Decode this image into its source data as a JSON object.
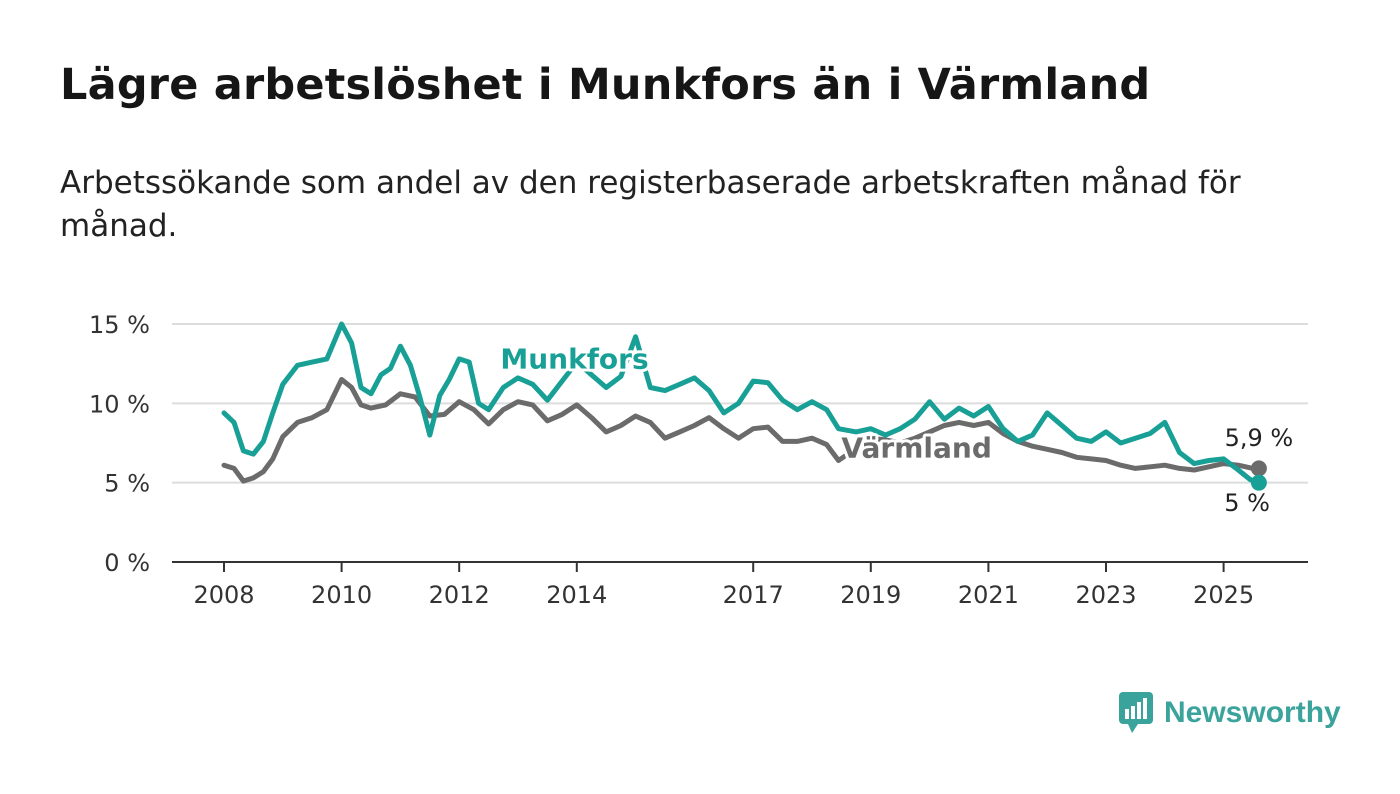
{
  "title": "Lägre arbetslöshet i Munkfors än i Värmland",
  "subtitle": "Arbetssökande som andel av den registerbaserade arbetskraften månad för månad.",
  "brand": {
    "name": "Newsworthy",
    "icon": "newsworthy-logo-icon",
    "color": "#3aa39b"
  },
  "chart_data": {
    "type": "line",
    "x_unit": "year",
    "xlim": [
      2007.7,
      2026.4
    ],
    "ylim": [
      0,
      15
    ],
    "x_ticks": [
      {
        "value": 2008,
        "label": "2008"
      },
      {
        "value": 2010,
        "label": "2010"
      },
      {
        "value": 2012,
        "label": "2012"
      },
      {
        "value": 2014,
        "label": "2014"
      },
      {
        "value": 2017,
        "label": "2017"
      },
      {
        "value": 2019,
        "label": "2019"
      },
      {
        "value": 2021,
        "label": "2021"
      },
      {
        "value": 2023,
        "label": "2023"
      },
      {
        "value": 2025,
        "label": "2025"
      }
    ],
    "y_ticks": [
      {
        "value": 0,
        "label": "0 %"
      },
      {
        "value": 5,
        "label": "5 %"
      },
      {
        "value": 10,
        "label": "10 %"
      },
      {
        "value": 15,
        "label": "15 %"
      }
    ],
    "grid": true,
    "series": [
      {
        "name": "Värmland",
        "color": "#6b6b6b",
        "end_label": "5,9 %",
        "points": [
          [
            2008.0,
            6.1
          ],
          [
            2008.17,
            5.9
          ],
          [
            2008.33,
            5.1
          ],
          [
            2008.5,
            5.3
          ],
          [
            2008.67,
            5.7
          ],
          [
            2008.83,
            6.5
          ],
          [
            2009.0,
            7.9
          ],
          [
            2009.25,
            8.8
          ],
          [
            2009.5,
            9.1
          ],
          [
            2009.75,
            9.6
          ],
          [
            2010.0,
            11.5
          ],
          [
            2010.17,
            11.0
          ],
          [
            2010.33,
            9.9
          ],
          [
            2010.5,
            9.7
          ],
          [
            2010.75,
            9.9
          ],
          [
            2011.0,
            10.6
          ],
          [
            2011.25,
            10.4
          ],
          [
            2011.5,
            9.2
          ],
          [
            2011.75,
            9.3
          ],
          [
            2012.0,
            10.1
          ],
          [
            2012.25,
            9.6
          ],
          [
            2012.5,
            8.7
          ],
          [
            2012.75,
            9.6
          ],
          [
            2013.0,
            10.1
          ],
          [
            2013.25,
            9.9
          ],
          [
            2013.5,
            8.9
          ],
          [
            2013.75,
            9.3
          ],
          [
            2014.0,
            9.9
          ],
          [
            2014.25,
            9.1
          ],
          [
            2014.5,
            8.2
          ],
          [
            2014.75,
            8.6
          ],
          [
            2015.0,
            9.2
          ],
          [
            2015.25,
            8.8
          ],
          [
            2015.5,
            7.8
          ],
          [
            2015.75,
            8.2
          ],
          [
            2016.0,
            8.6
          ],
          [
            2016.25,
            9.1
          ],
          [
            2016.5,
            8.4
          ],
          [
            2016.75,
            7.8
          ],
          [
            2017.0,
            8.4
          ],
          [
            2017.25,
            8.5
          ],
          [
            2017.5,
            7.6
          ],
          [
            2017.75,
            7.6
          ],
          [
            2018.0,
            7.8
          ],
          [
            2018.25,
            7.4
          ],
          [
            2018.45,
            6.4
          ],
          [
            2019.0,
            7.8
          ],
          [
            2019.25,
            7.7
          ],
          [
            2019.5,
            7.5
          ],
          [
            2019.75,
            7.8
          ],
          [
            2020.0,
            8.2
          ],
          [
            2020.25,
            8.6
          ],
          [
            2020.5,
            8.8
          ],
          [
            2020.75,
            8.6
          ],
          [
            2021.0,
            8.8
          ],
          [
            2021.25,
            8.1
          ],
          [
            2021.5,
            7.6
          ],
          [
            2021.75,
            7.3
          ],
          [
            2022.0,
            7.1
          ],
          [
            2022.25,
            6.9
          ],
          [
            2022.5,
            6.6
          ],
          [
            2022.75,
            6.5
          ],
          [
            2023.0,
            6.4
          ],
          [
            2023.25,
            6.1
          ],
          [
            2023.5,
            5.9
          ],
          [
            2023.75,
            6.0
          ],
          [
            2024.0,
            6.1
          ],
          [
            2024.25,
            5.9
          ],
          [
            2024.5,
            5.8
          ],
          [
            2024.75,
            6.0
          ],
          [
            2025.0,
            6.2
          ],
          [
            2025.25,
            6.1
          ],
          [
            2025.5,
            5.9
          ],
          [
            2025.6,
            5.9
          ]
        ]
      },
      {
        "name": "Munkfors",
        "color": "#18a096",
        "end_label": "5 %",
        "points": [
          [
            2008.0,
            9.4
          ],
          [
            2008.17,
            8.8
          ],
          [
            2008.33,
            7.0
          ],
          [
            2008.5,
            6.8
          ],
          [
            2008.67,
            7.6
          ],
          [
            2008.83,
            9.4
          ],
          [
            2009.0,
            11.2
          ],
          [
            2009.25,
            12.4
          ],
          [
            2009.5,
            12.6
          ],
          [
            2009.75,
            12.8
          ],
          [
            2010.0,
            15.0
          ],
          [
            2010.17,
            13.8
          ],
          [
            2010.33,
            11.0
          ],
          [
            2010.5,
            10.6
          ],
          [
            2010.67,
            11.8
          ],
          [
            2010.83,
            12.2
          ],
          [
            2011.0,
            13.6
          ],
          [
            2011.17,
            12.4
          ],
          [
            2011.33,
            10.4
          ],
          [
            2011.5,
            8.0
          ],
          [
            2011.67,
            10.5
          ],
          [
            2011.83,
            11.5
          ],
          [
            2012.0,
            12.8
          ],
          [
            2012.17,
            12.6
          ],
          [
            2012.33,
            10.0
          ],
          [
            2012.5,
            9.6
          ],
          [
            2012.75,
            11.0
          ],
          [
            2013.0,
            11.6
          ],
          [
            2013.25,
            11.2
          ],
          [
            2013.5,
            10.2
          ],
          [
            2013.75,
            11.4
          ],
          [
            2014.0,
            12.6
          ],
          [
            2014.25,
            11.8
          ],
          [
            2014.5,
            11.0
          ],
          [
            2014.75,
            11.7
          ],
          [
            2015.0,
            14.2
          ],
          [
            2015.25,
            11.0
          ],
          [
            2015.5,
            10.8
          ],
          [
            2015.75,
            11.2
          ],
          [
            2016.0,
            11.6
          ],
          [
            2016.25,
            10.8
          ],
          [
            2016.5,
            9.4
          ],
          [
            2016.75,
            10.0
          ],
          [
            2017.0,
            11.4
          ],
          [
            2017.25,
            11.3
          ],
          [
            2017.5,
            10.2
          ],
          [
            2017.75,
            9.6
          ],
          [
            2018.0,
            10.1
          ],
          [
            2018.25,
            9.6
          ],
          [
            2018.45,
            8.4
          ],
          [
            2018.75,
            8.2
          ],
          [
            2019.0,
            8.4
          ],
          [
            2019.25,
            8.0
          ],
          [
            2019.5,
            8.4
          ],
          [
            2019.75,
            9.0
          ],
          [
            2020.0,
            10.1
          ],
          [
            2020.25,
            9.0
          ],
          [
            2020.5,
            9.7
          ],
          [
            2020.75,
            9.2
          ],
          [
            2021.0,
            9.8
          ],
          [
            2021.25,
            8.4
          ],
          [
            2021.5,
            7.6
          ],
          [
            2021.75,
            8.0
          ],
          [
            2022.0,
            9.4
          ],
          [
            2022.25,
            8.6
          ],
          [
            2022.5,
            7.8
          ],
          [
            2022.75,
            7.6
          ],
          [
            2023.0,
            8.2
          ],
          [
            2023.25,
            7.5
          ],
          [
            2023.5,
            7.8
          ],
          [
            2023.75,
            8.1
          ],
          [
            2024.0,
            8.8
          ],
          [
            2024.25,
            6.9
          ],
          [
            2024.5,
            6.2
          ],
          [
            2024.75,
            6.4
          ],
          [
            2025.0,
            6.5
          ],
          [
            2025.25,
            5.8
          ],
          [
            2025.45,
            5.2
          ],
          [
            2025.6,
            5.0
          ]
        ]
      }
    ]
  }
}
